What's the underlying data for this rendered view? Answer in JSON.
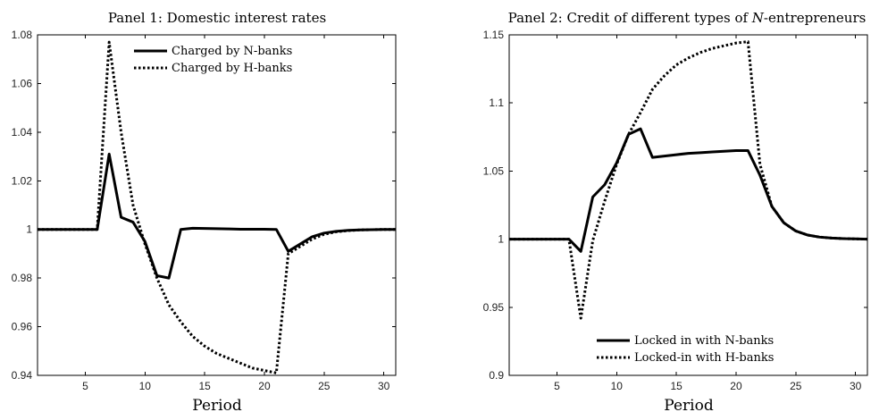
{
  "chart_data": [
    {
      "type": "line",
      "title": "Panel 1: Domestic interest rates",
      "xlabel": "Period",
      "ylabel": "",
      "xlim": [
        1,
        31
      ],
      "ylim": [
        0.94,
        1.08
      ],
      "xticks": [
        5,
        10,
        15,
        20,
        25,
        30
      ],
      "yticks": [
        0.94,
        0.96,
        0.98,
        1,
        1.02,
        1.04,
        1.06,
        1.08
      ],
      "ytick_labels": [
        "0.94",
        "0.96",
        "0.98",
        "1",
        "1.02",
        "1.04",
        "1.06",
        "1.08"
      ],
      "legend_position": "top-center",
      "series": [
        {
          "name": "Charged by N-banks",
          "style": "solid",
          "color": "#000000",
          "x": [
            1,
            2,
            3,
            4,
            5,
            6,
            7,
            8,
            9,
            10,
            11,
            12,
            13,
            14,
            15,
            16,
            17,
            18,
            19,
            20,
            21,
            22,
            23,
            24,
            25,
            26,
            27,
            28,
            29,
            30,
            31
          ],
          "y": [
            1.0,
            1.0,
            1.0,
            1.0,
            1.0,
            1.0,
            1.031,
            1.005,
            1.003,
            0.995,
            0.981,
            0.98,
            1.0,
            1.0005,
            1.0004,
            1.0003,
            1.0002,
            1.0001,
            1.0001,
            1.0001,
            1.0,
            0.991,
            0.994,
            0.997,
            0.9985,
            0.9992,
            0.9996,
            0.9998,
            0.9999,
            1.0,
            1.0
          ]
        },
        {
          "name": "Charged by H-banks",
          "style": "dotted",
          "color": "#000000",
          "x": [
            1,
            2,
            3,
            4,
            5,
            6,
            7,
            8,
            9,
            10,
            11,
            12,
            13,
            14,
            15,
            16,
            17,
            18,
            19,
            20,
            21,
            22,
            23,
            24,
            25,
            26,
            27,
            28,
            29,
            30,
            31
          ],
          "y": [
            1.0,
            1.0,
            1.0,
            1.0,
            1.0,
            1.0,
            1.077,
            1.04,
            1.01,
            0.994,
            0.98,
            0.969,
            0.962,
            0.956,
            0.952,
            0.949,
            0.947,
            0.945,
            0.943,
            0.942,
            0.941,
            0.99,
            0.993,
            0.996,
            0.998,
            0.999,
            0.9995,
            0.9998,
            0.9999,
            1.0,
            1.0
          ]
        }
      ]
    },
    {
      "type": "line",
      "title": "Panel 2: Credit of different types of N-entrepreneurs",
      "title_plain": "Panel 2: Credit of different types of ",
      "title_italic": "N",
      "title_rest": "-entrepreneurs",
      "xlabel": "Period",
      "ylabel": "",
      "xlim": [
        1,
        31
      ],
      "ylim": [
        0.9,
        1.15
      ],
      "xticks": [
        5,
        10,
        15,
        20,
        25,
        30
      ],
      "yticks": [
        0.9,
        0.95,
        1,
        1.05,
        1.1,
        1.15
      ],
      "ytick_labels": [
        "0.9",
        "0.95",
        "1",
        "1.05",
        "1.1",
        "1.15"
      ],
      "legend_position": "bottom-center",
      "series": [
        {
          "name": "Locked in with N-banks",
          "style": "solid",
          "color": "#000000",
          "x": [
            1,
            2,
            3,
            4,
            5,
            6,
            7,
            8,
            9,
            10,
            11,
            12,
            13,
            14,
            15,
            16,
            17,
            18,
            19,
            20,
            21,
            22,
            23,
            24,
            25,
            26,
            27,
            28,
            29,
            30,
            31
          ],
          "y": [
            1.0,
            1.0,
            1.0,
            1.0,
            1.0,
            1.0,
            0.991,
            1.031,
            1.04,
            1.056,
            1.077,
            1.081,
            1.06,
            1.061,
            1.062,
            1.063,
            1.0635,
            1.064,
            1.0645,
            1.065,
            1.065,
            1.047,
            1.024,
            1.012,
            1.006,
            1.003,
            1.0015,
            1.0008,
            1.0004,
            1.0002,
            1.0
          ]
        },
        {
          "name": "Locked-in with H-banks",
          "style": "dotted",
          "color": "#000000",
          "x": [
            1,
            2,
            3,
            4,
            5,
            6,
            7,
            8,
            9,
            10,
            11,
            12,
            13,
            14,
            15,
            16,
            17,
            18,
            19,
            20,
            21,
            22,
            23,
            24,
            25,
            26,
            27,
            28,
            29,
            30,
            31
          ],
          "y": [
            1.0,
            1.0,
            1.0,
            1.0,
            1.0,
            1.0,
            0.942,
            0.999,
            1.028,
            1.055,
            1.077,
            1.093,
            1.11,
            1.12,
            1.128,
            1.133,
            1.137,
            1.14,
            1.142,
            1.144,
            1.145,
            1.055,
            1.024,
            1.012,
            1.006,
            1.003,
            1.0015,
            1.0008,
            1.0004,
            1.0002,
            1.0
          ]
        }
      ]
    }
  ]
}
